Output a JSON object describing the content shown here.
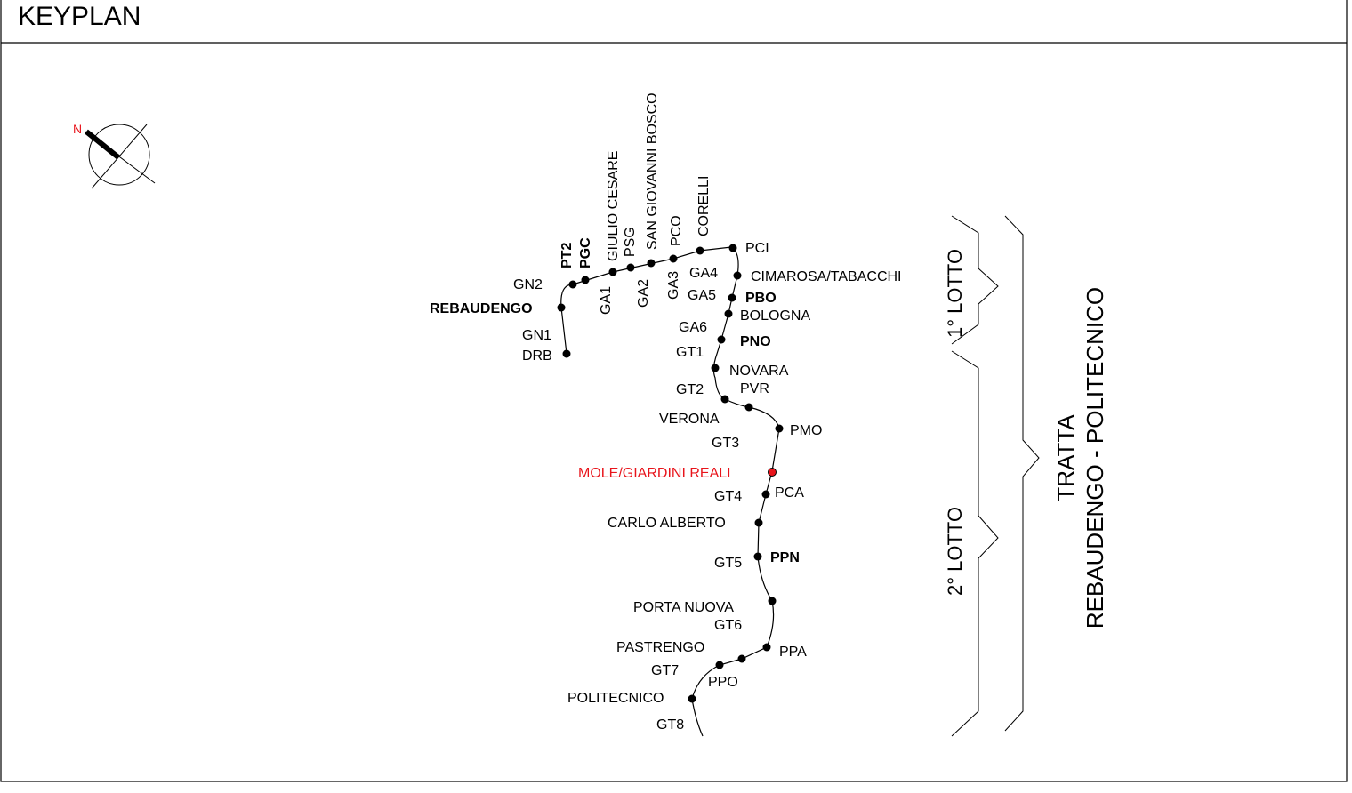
{
  "title": "KEYPLAN",
  "north_label": "N",
  "colors": {
    "line": "#000000",
    "highlight": "#e8141b",
    "text": "#000000"
  },
  "icons": {
    "north_arrow": "north-arrow-icon"
  },
  "lots": {
    "lot1": "1° LOTTO",
    "lot2": "2° LOTTO"
  },
  "tratta": {
    "line1": "TRATTA",
    "line2": "REBAUDENGO - POLITECNICO"
  },
  "stations": {
    "giulio_cesare": "GIULIO CESARE",
    "san_giovanni_bosco": "SAN GIOVANNI BOSCO",
    "corelli": "CORELLI",
    "rebaudengo": "REBAUDENGO",
    "cimarosa": "CIMAROSA/TABACCHI",
    "bologna": "BOLOGNA",
    "novara": "NOVARA",
    "verona": "VERONA",
    "mole": "MOLE/GIARDINI REALI",
    "carlo_alberto": "CARLO ALBERTO",
    "porta_nuova": "PORTA NUOVA",
    "pastrengo": "PASTRENGO",
    "politecnico": "POLITECNICO"
  },
  "shafts": {
    "pt2": "PT2",
    "pgc": "PGC",
    "psg": "PSG",
    "pco": "PCO",
    "pci": "PCI",
    "pbo": "PBO",
    "pno": "PNO",
    "pvr": "PVR",
    "pmo": "PMO",
    "pca": "PCA",
    "ppn": "PPN",
    "ppa": "PPA",
    "ppo": "PPO",
    "drb": "DRB"
  },
  "galleries": {
    "gn1": "GN1",
    "gn2": "GN2",
    "ga1": "GA1",
    "ga2": "GA2",
    "ga3": "GA3",
    "ga4": "GA4",
    "ga5": "GA5",
    "ga6": "GA6",
    "gt1": "GT1",
    "gt2": "GT2",
    "gt3": "GT3",
    "gt4": "GT4",
    "gt5": "GT5",
    "gt6": "GT6",
    "gt7": "GT7",
    "gt8": "GT8"
  }
}
